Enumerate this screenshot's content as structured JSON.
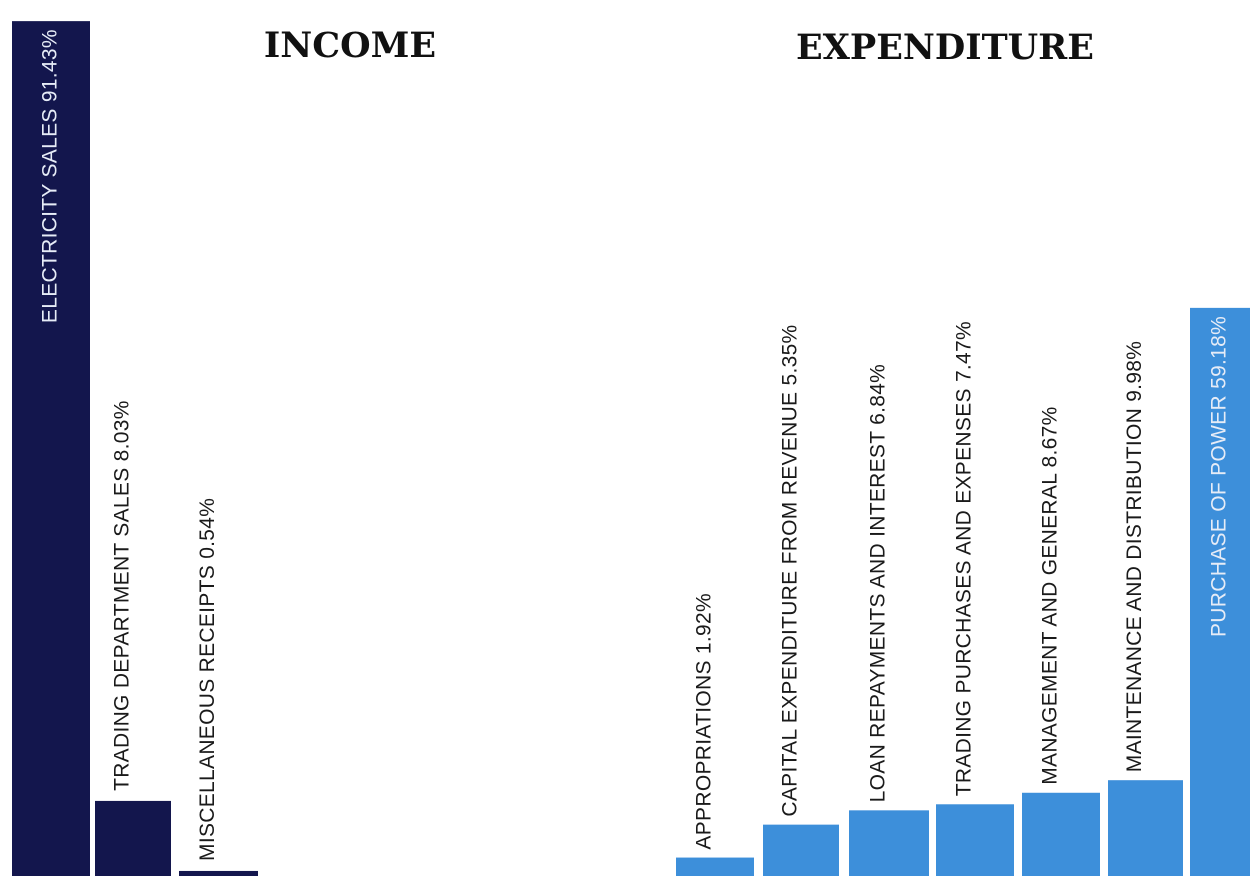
{
  "chart_data": [
    {
      "type": "bar",
      "title": "INCOME",
      "color": "#13164d",
      "categories": [
        "ELECTRICITY SALES",
        "TRADING DEPARTMENT SALES",
        "MISCELLANEOUS RECEIPTS"
      ],
      "values": [
        91.43,
        8.03,
        0.54
      ],
      "labels": [
        "ELECTRICITY SALES 91.43%",
        "TRADING DEPARTMENT SALES 8.03%",
        "MISCELLANEOUS RECEIPTS 0.54%"
      ],
      "unit": "%"
    },
    {
      "type": "bar",
      "title": "EXPENDITURE",
      "color": "#3d8fda",
      "categories": [
        "APPROPRIATIONS",
        "CAPITAL EXPENDITURE FROM REVENUE",
        "LOAN REPAYMENTS AND INTEREST",
        "TRADING PURCHASES AND EXPENSES",
        "MANAGEMENT AND GENERAL",
        "MAINTENANCE AND DISTRIBUTION",
        "PURCHASE OF POWER"
      ],
      "values": [
        1.92,
        5.35,
        6.84,
        7.47,
        8.67,
        9.98,
        59.18
      ],
      "labels": [
        "APPROPRIATIONS 1.92%",
        "CAPITAL EXPENDITURE FROM REVENUE 5.35%",
        "LOAN REPAYMENTS AND INTEREST 6.84%",
        "TRADING PURCHASES AND EXPENSES 7.47%",
        "MANAGEMENT AND GENERAL 8.67%",
        "MAINTENANCE AND DISTRIBUTION 9.98%",
        "PURCHASE OF POWER 59.18%"
      ],
      "unit": "%"
    }
  ]
}
